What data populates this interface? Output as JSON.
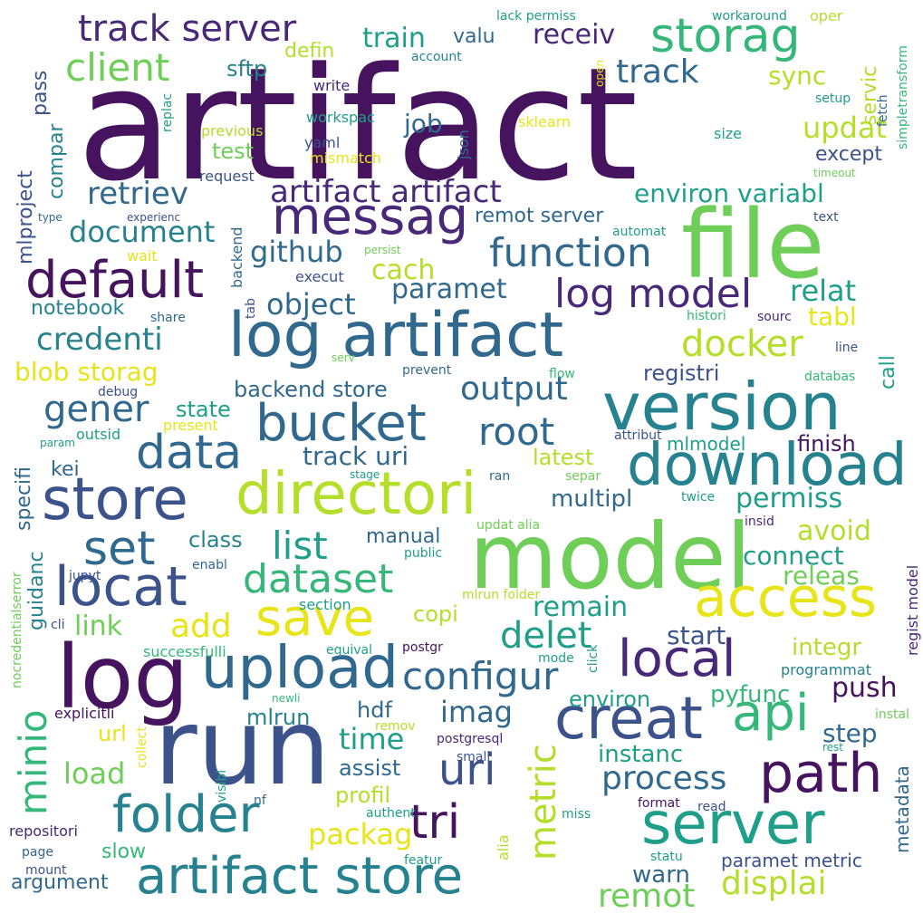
{
  "palette": {
    "dark_purple": "#46145e",
    "purple": "#482878",
    "indigo": "#3b528b",
    "blue": "#31688e",
    "teal": "#26828e",
    "sea": "#1f9e89",
    "green": "#35b779",
    "lime": "#6ece58",
    "yellowgreen": "#b5de2b",
    "yellow": "#e7e419"
  },
  "words": [
    {
      "text": "artifact",
      "color": "dark_purple"
    },
    {
      "text": "file",
      "color": "lime"
    },
    {
      "text": "run",
      "color": "indigo"
    },
    {
      "text": "model",
      "color": "lime"
    },
    {
      "text": "log",
      "color": "dark_purple"
    },
    {
      "text": "version",
      "color": "teal"
    },
    {
      "text": "log artifact",
      "color": "blue"
    },
    {
      "text": "directori",
      "color": "yellowgreen"
    },
    {
      "text": "store",
      "color": "indigo"
    },
    {
      "text": "upload",
      "color": "blue"
    },
    {
      "text": "server",
      "color": "sea"
    },
    {
      "text": "creat",
      "color": "indigo"
    },
    {
      "text": "download",
      "color": "teal"
    },
    {
      "text": "access",
      "color": "yellow"
    },
    {
      "text": "messag",
      "color": "purple"
    },
    {
      "text": "artifact store",
      "color": "teal"
    },
    {
      "text": "path",
      "color": "dark_purple"
    },
    {
      "text": "bucket",
      "color": "blue"
    },
    {
      "text": "locat",
      "color": "indigo"
    },
    {
      "text": "save",
      "color": "yellow"
    },
    {
      "text": "folder",
      "color": "teal"
    },
    {
      "text": "local",
      "color": "purple"
    },
    {
      "text": "default",
      "color": "dark_purple"
    },
    {
      "text": "storag",
      "color": "green"
    },
    {
      "text": "data",
      "color": "blue"
    },
    {
      "text": "function",
      "color": "blue"
    },
    {
      "text": "log model",
      "color": "purple"
    },
    {
      "text": "api",
      "color": "green"
    },
    {
      "text": "uri",
      "color": "indigo"
    },
    {
      "text": "tri",
      "color": "dark_purple"
    },
    {
      "text": "configur",
      "color": "blue"
    },
    {
      "text": "set",
      "color": "blue"
    },
    {
      "text": "minio",
      "color": "green"
    },
    {
      "text": "dataset",
      "color": "green"
    },
    {
      "text": "track server",
      "color": "purple"
    },
    {
      "text": "client",
      "color": "lime"
    },
    {
      "text": "root",
      "color": "blue"
    },
    {
      "text": "docker",
      "color": "yellowgreen"
    },
    {
      "text": "artifact artifact",
      "color": "purple"
    },
    {
      "text": "retriev",
      "color": "blue"
    },
    {
      "text": "process",
      "color": "blue"
    },
    {
      "text": "list",
      "color": "sea"
    },
    {
      "text": "metric",
      "color": "yellowgreen"
    },
    {
      "text": "delet",
      "color": "sea"
    },
    {
      "text": "remot",
      "color": "lime"
    },
    {
      "text": "displai",
      "color": "yellowgreen"
    },
    {
      "text": "gener",
      "color": "blue"
    },
    {
      "text": "output",
      "color": "blue"
    },
    {
      "text": "add",
      "color": "yellow"
    },
    {
      "text": "credenti",
      "color": "teal"
    },
    {
      "text": "track",
      "color": "blue"
    },
    {
      "text": "object",
      "color": "blue"
    },
    {
      "text": "paramet",
      "color": "blue"
    },
    {
      "text": "document",
      "color": "teal"
    },
    {
      "text": "environ variabl",
      "color": "sea"
    },
    {
      "text": "blob storag",
      "color": "yellow"
    },
    {
      "text": "track uri",
      "color": "blue"
    },
    {
      "text": "avoid",
      "color": "yellowgreen"
    },
    {
      "text": "permiss",
      "color": "sea"
    },
    {
      "text": "relat",
      "color": "sea"
    },
    {
      "text": "cach",
      "color": "yellowgreen"
    },
    {
      "text": "github",
      "color": "blue"
    },
    {
      "text": "updat",
      "color": "yellowgreen"
    },
    {
      "text": "receiv",
      "color": "purple"
    },
    {
      "text": "train",
      "color": "sea"
    },
    {
      "text": "imag",
      "color": "blue"
    },
    {
      "text": "load",
      "color": "lime"
    },
    {
      "text": "packag",
      "color": "yellow"
    },
    {
      "text": "time",
      "color": "sea"
    },
    {
      "text": "remain",
      "color": "sea"
    },
    {
      "text": "link",
      "color": "lime"
    },
    {
      "text": "push",
      "color": "dark_purple"
    },
    {
      "text": "start",
      "color": "indigo"
    },
    {
      "text": "connect",
      "color": "sea"
    },
    {
      "text": "releas",
      "color": "lime"
    },
    {
      "text": "instanc",
      "color": "sea"
    },
    {
      "text": "integr",
      "color": "yellowgreen"
    },
    {
      "text": "tabl",
      "color": "yellow"
    },
    {
      "text": "latest",
      "color": "yellowgreen"
    },
    {
      "text": "multipl",
      "color": "blue"
    },
    {
      "text": "step",
      "color": "blue"
    },
    {
      "text": "pyfunc",
      "color": "green"
    },
    {
      "text": "environ",
      "color": "sea"
    },
    {
      "text": "except",
      "color": "indigo"
    },
    {
      "text": "warn",
      "color": "blue"
    },
    {
      "text": "job",
      "color": "blue"
    },
    {
      "text": "sync",
      "color": "yellowgreen"
    },
    {
      "text": "finish",
      "color": "dark_purple"
    },
    {
      "text": "registri",
      "color": "indigo"
    },
    {
      "text": "backend store",
      "color": "blue"
    },
    {
      "text": "remot server",
      "color": "blue"
    },
    {
      "text": "state",
      "color": "sea"
    },
    {
      "text": "argument",
      "color": "blue"
    },
    {
      "text": "slow",
      "color": "green"
    },
    {
      "text": "class",
      "color": "teal"
    },
    {
      "text": "manual",
      "color": "blue"
    },
    {
      "text": "copi",
      "color": "yellowgreen"
    },
    {
      "text": "test",
      "color": "lime"
    },
    {
      "text": "sftp",
      "color": "teal"
    },
    {
      "text": "hdf",
      "color": "blue"
    },
    {
      "text": "mlrun",
      "color": "teal"
    },
    {
      "text": "url",
      "color": "yellow"
    },
    {
      "text": "assist",
      "color": "blue"
    },
    {
      "text": "profil",
      "color": "yellowgreen"
    },
    {
      "text": "kei",
      "color": "blue"
    },
    {
      "text": "notebook",
      "color": "teal"
    },
    {
      "text": "valu",
      "color": "blue"
    },
    {
      "text": "defin",
      "color": "yellowgreen"
    },
    {
      "text": "mlmodel",
      "color": "sea"
    },
    {
      "text": "paramet metric",
      "color": "indigo"
    },
    {
      "text": "programmat",
      "color": "teal"
    },
    {
      "text": "execut",
      "color": "indigo"
    },
    {
      "text": "write",
      "color": "purple"
    },
    {
      "text": "yaml",
      "color": "indigo"
    },
    {
      "text": "workspac",
      "color": "sea"
    },
    {
      "text": "previous",
      "color": "yellowgreen"
    },
    {
      "text": "mismatch",
      "color": "yellow"
    },
    {
      "text": "request",
      "color": "indigo"
    },
    {
      "text": "account",
      "color": "teal"
    },
    {
      "text": "lack permiss",
      "color": "sea"
    },
    {
      "text": "workaround",
      "color": "sea"
    },
    {
      "text": "oper",
      "color": "yellowgreen"
    },
    {
      "text": "sklearn",
      "color": "yellow"
    },
    {
      "text": "size",
      "color": "sea"
    },
    {
      "text": "setup",
      "color": "sea"
    },
    {
      "text": "timeout",
      "color": "lime"
    },
    {
      "text": "text",
      "color": "indigo"
    },
    {
      "text": "automat",
      "color": "sea"
    },
    {
      "text": "persist",
      "color": "lime"
    },
    {
      "text": "experienc",
      "color": "indigo"
    },
    {
      "text": "type",
      "color": "blue"
    },
    {
      "text": "wait",
      "color": "yellow"
    },
    {
      "text": "share",
      "color": "blue"
    },
    {
      "text": "histori",
      "color": "green"
    },
    {
      "text": "sourc",
      "color": "purple"
    },
    {
      "text": "line",
      "color": "indigo"
    },
    {
      "text": "databas",
      "color": "green"
    },
    {
      "text": "prevent",
      "color": "blue"
    },
    {
      "text": "flow",
      "color": "green"
    },
    {
      "text": "serv",
      "color": "lime"
    },
    {
      "text": "debug",
      "color": "indigo"
    },
    {
      "text": "present",
      "color": "yellow"
    },
    {
      "text": "outsid",
      "color": "sea"
    },
    {
      "text": "param",
      "color": "sea"
    },
    {
      "text": "attribut",
      "color": "indigo"
    },
    {
      "text": "stage",
      "color": "sea"
    },
    {
      "text": "ran",
      "color": "blue"
    },
    {
      "text": "separ",
      "color": "lime"
    },
    {
      "text": "twice",
      "color": "sea"
    },
    {
      "text": "insid",
      "color": "purple"
    },
    {
      "text": "updat alia",
      "color": "lime"
    },
    {
      "text": "regist model",
      "color": "purple"
    },
    {
      "text": "public",
      "color": "sea"
    },
    {
      "text": "enabl",
      "color": "blue"
    },
    {
      "text": "jupyt",
      "color": "indigo"
    },
    {
      "text": "section",
      "color": "sea"
    },
    {
      "text": "mlrun folder",
      "color": "yellowgreen"
    },
    {
      "text": "cli",
      "color": "indigo"
    },
    {
      "text": "successfulli",
      "color": "green"
    },
    {
      "text": "equival",
      "color": "sea"
    },
    {
      "text": "postgr",
      "color": "dark_purple"
    },
    {
      "text": "mode",
      "color": "sea"
    },
    {
      "text": "newli",
      "color": "green"
    },
    {
      "text": "explicitli",
      "color": "dark_purple"
    },
    {
      "text": "remov",
      "color": "yellowgreen"
    },
    {
      "text": "postgresql",
      "color": "purple"
    },
    {
      "text": "small",
      "color": "indigo"
    },
    {
      "text": "instal",
      "color": "lime"
    },
    {
      "text": "rest",
      "color": "sea"
    },
    {
      "text": "nf",
      "color": "blue"
    },
    {
      "text": "authent",
      "color": "sea"
    },
    {
      "text": "miss",
      "color": "sea"
    },
    {
      "text": "format",
      "color": "dark_purple"
    },
    {
      "text": "read",
      "color": "indigo"
    },
    {
      "text": "repositori",
      "color": "purple"
    },
    {
      "text": "page",
      "color": "blue"
    },
    {
      "text": "mount",
      "color": "indigo"
    },
    {
      "text": "statu",
      "color": "sea"
    },
    {
      "text": "featur",
      "color": "sea"
    },
    {
      "text": "variabl",
      "color": "sea"
    },
    {
      "text": "mlproject",
      "color": "indigo"
    },
    {
      "text": "compar",
      "color": "teal"
    },
    {
      "text": "pass",
      "color": "indigo"
    },
    {
      "text": "specifi",
      "color": "blue"
    },
    {
      "text": "guidanc",
      "color": "teal"
    },
    {
      "text": "nocredentialserror",
      "color": "lime"
    },
    {
      "text": "backend",
      "color": "blue"
    },
    {
      "text": "tab",
      "color": "indigo"
    },
    {
      "text": "replac",
      "color": "sea"
    },
    {
      "text": "json",
      "color": "blue"
    },
    {
      "text": "open",
      "color": "yellow"
    },
    {
      "text": "collect",
      "color": "yellow"
    },
    {
      "text": "visibl",
      "color": "sea"
    },
    {
      "text": "alia",
      "color": "yellowgreen"
    },
    {
      "text": "click",
      "color": "sea"
    },
    {
      "text": "metadata",
      "color": "blue"
    },
    {
      "text": "call",
      "color": "sea"
    },
    {
      "text": "servic",
      "color": "yellowgreen"
    },
    {
      "text": "fetch",
      "color": "blue"
    },
    {
      "text": "simpletransform",
      "color": "green"
    }
  ]
}
